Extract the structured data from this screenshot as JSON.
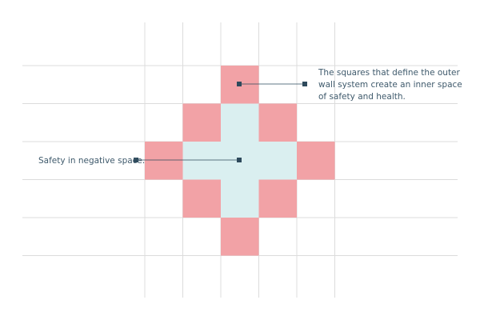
{
  "annotations": {
    "outer_wall": "The squares that define the outer wall system create an inner space of safety and health.",
    "negative_space": "Safety in negative space."
  },
  "colors": {
    "outer_square": "#f2a2a6",
    "inner_square": "#daeff0",
    "grid_line": "#dcdcdc",
    "leader": "#2e4a5c",
    "text": "#3f5a6c"
  }
}
